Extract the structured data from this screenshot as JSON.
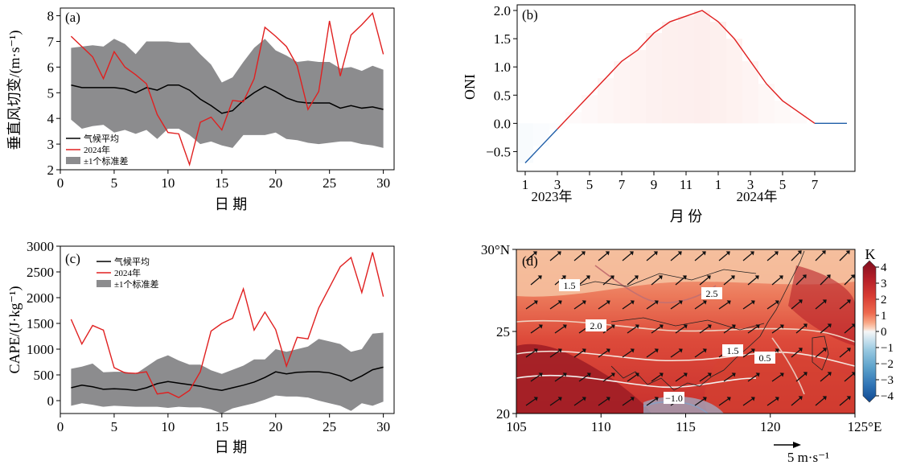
{
  "chart_data": [
    {
      "type": "line",
      "panel_label": "(a)",
      "xlabel": "日 期",
      "ylabel": "垂直风切变/(m·s⁻¹)",
      "xlim": [
        0,
        31
      ],
      "ylim": [
        2,
        8.3
      ],
      "xticks": [
        0,
        5,
        10,
        15,
        20,
        25,
        30
      ],
      "yticks": [
        2,
        3,
        4,
        5,
        6,
        7,
        8
      ],
      "legend": "lower-left",
      "x": [
        1,
        2,
        3,
        4,
        5,
        6,
        7,
        8,
        9,
        10,
        11,
        12,
        13,
        14,
        15,
        16,
        17,
        18,
        19,
        20,
        21,
        22,
        23,
        24,
        25,
        26,
        27,
        28,
        29,
        30
      ],
      "series": [
        {
          "name": "气候平均",
          "color": "#000000",
          "values": [
            5.3,
            5.2,
            5.2,
            5.2,
            5.2,
            5.15,
            5.0,
            5.2,
            5.1,
            5.3,
            5.3,
            5.1,
            4.75,
            4.5,
            4.2,
            4.3,
            4.7,
            5.0,
            5.25,
            5.05,
            4.8,
            4.65,
            4.6,
            4.6,
            4.6,
            4.4,
            4.5,
            4.4,
            4.45,
            4.35
          ]
        },
        {
          "name": "2024年",
          "color": "#e02020",
          "values": [
            7.2,
            6.8,
            6.4,
            5.55,
            6.6,
            6.0,
            5.7,
            5.35,
            4.15,
            3.45,
            3.4,
            2.2,
            3.85,
            4.05,
            3.55,
            4.7,
            4.65,
            5.55,
            7.55,
            7.2,
            6.8,
            6.05,
            4.35,
            5.05,
            7.8,
            5.65,
            7.25,
            7.65,
            8.1,
            6.5
          ]
        },
        {
          "name": "±1个标准差",
          "color": "#8c8c8e",
          "upper": [
            6.75,
            6.8,
            6.85,
            6.8,
            7.1,
            6.9,
            6.5,
            7.0,
            7.0,
            7.0,
            6.95,
            6.95,
            6.5,
            6.1,
            5.4,
            5.6,
            6.2,
            6.75,
            7.1,
            6.65,
            6.45,
            6.2,
            6.25,
            6.2,
            6.2,
            5.95,
            6.0,
            5.85,
            6.05,
            5.9
          ],
          "lower": [
            3.95,
            3.6,
            3.7,
            3.75,
            3.45,
            3.55,
            3.4,
            3.55,
            3.2,
            3.6,
            3.6,
            3.35,
            3.0,
            3.1,
            2.95,
            2.85,
            3.35,
            3.35,
            3.35,
            3.45,
            3.2,
            3.15,
            3.05,
            3.0,
            3.05,
            3.1,
            3.1,
            3.0,
            2.95,
            2.85
          ]
        }
      ]
    },
    {
      "type": "line",
      "panel_label": "(b)",
      "xlabel": "月 份",
      "ylabel": "ONI",
      "xlim": [
        0.5,
        21.5
      ],
      "ylim": [
        -0.85,
        2.1
      ],
      "xtick_labels": [
        "1",
        "3",
        "5",
        "7",
        "9",
        "11",
        "1",
        "3",
        "5",
        "7"
      ],
      "year_labels": [
        "2023年",
        "2024年"
      ],
      "yticks": [
        -0.5,
        0.0,
        0.5,
        1.0,
        1.5,
        2.0
      ],
      "ytick_labels": [
        "−0.5",
        "0.0",
        "0.5",
        "1.0",
        "1.5",
        "2.0"
      ],
      "x": [
        1,
        2,
        3,
        4,
        5,
        6,
        7,
        8,
        9,
        10,
        11,
        12,
        13,
        14,
        15,
        16,
        17,
        18,
        19,
        20,
        21
      ],
      "values": [
        -0.7,
        -0.4,
        -0.1,
        0.2,
        0.5,
        0.8,
        1.1,
        1.3,
        1.6,
        1.8,
        1.9,
        2.0,
        1.8,
        1.5,
        1.1,
        0.7,
        0.4,
        0.2,
        0.0,
        0.0,
        0.0
      ],
      "colors": {
        "positive": "#e02020",
        "negative": "#1f5ea8",
        "fill_pos": "#f9c9c4",
        "fill_neg": "#cfe3f3"
      }
    },
    {
      "type": "line",
      "panel_label": "(c)",
      "xlabel": "日 期",
      "ylabel": "CAPE/(J·kg⁻¹)",
      "xlim": [
        0,
        31
      ],
      "ylim": [
        -250,
        3000
      ],
      "xticks": [
        0,
        5,
        10,
        15,
        20,
        25,
        30
      ],
      "yticks": [
        0,
        500,
        1000,
        1500,
        2000,
        2500,
        3000
      ],
      "legend": "top-left",
      "x": [
        1,
        2,
        3,
        4,
        5,
        6,
        7,
        8,
        9,
        10,
        11,
        12,
        13,
        14,
        15,
        16,
        17,
        18,
        19,
        20,
        21,
        22,
        23,
        24,
        25,
        26,
        27,
        28,
        29,
        30
      ],
      "series": [
        {
          "name": "气候平均",
          "color": "#000000",
          "values": [
            250,
            300,
            270,
            220,
            230,
            220,
            200,
            250,
            330,
            370,
            340,
            310,
            280,
            230,
            200,
            250,
            300,
            360,
            450,
            560,
            520,
            550,
            560,
            560,
            540,
            480,
            380,
            480,
            600,
            650
          ]
        },
        {
          "name": "2024年",
          "color": "#e02020",
          "values": [
            1580,
            1100,
            1460,
            1370,
            640,
            540,
            530,
            560,
            130,
            160,
            60,
            200,
            560,
            1350,
            1500,
            1600,
            2170,
            1370,
            1720,
            1380,
            670,
            1230,
            1200,
            1800,
            2200,
            2600,
            2780,
            2100,
            2880,
            2020
          ]
        },
        {
          "name": "±1个标准差",
          "color": "#8c8c8e",
          "upper": [
            620,
            660,
            720,
            550,
            560,
            560,
            520,
            660,
            800,
            880,
            780,
            700,
            700,
            590,
            520,
            600,
            680,
            800,
            800,
            1000,
            950,
            1000,
            1050,
            1200,
            1150,
            1100,
            950,
            1000,
            1300,
            1320
          ],
          "lower": [
            -100,
            -50,
            -80,
            -120,
            -100,
            -110,
            -120,
            -120,
            -120,
            -140,
            -120,
            -130,
            -130,
            -170,
            -250,
            -150,
            -100,
            -50,
            20,
            100,
            80,
            80,
            60,
            0,
            -50,
            -100,
            -200,
            -50,
            -100,
            -20
          ]
        }
      ]
    },
    {
      "type": "heatmap",
      "panel_label": "(d)",
      "region": {
        "lon": [
          105,
          125
        ],
        "lat": [
          20,
          30
        ]
      },
      "xtick_labels": [
        "105",
        "110",
        "115",
        "120",
        "125°E"
      ],
      "ytick_labels": [
        "20",
        "25",
        "30°N"
      ],
      "colorbar": {
        "unit": "K",
        "ticks": [
          "4",
          "3",
          "2",
          "1",
          "0",
          "−1",
          "−2",
          "−3",
          "−4"
        ],
        "colors": [
          "#800f1f",
          "#b21d27",
          "#d73b32",
          "#ee6a4e",
          "#f9a987",
          "#fbd7c4",
          "#f6f6f6",
          "#d2e6f0",
          "#99c9e1",
          "#5ea3cc",
          "#2f73b5",
          "#104891"
        ]
      },
      "contour_labels": [
        "1.5",
        "2.5",
        "2.0",
        "1.5",
        "0.5",
        "−1.0"
      ],
      "vector_reference": "5 m·s⁻¹"
    }
  ]
}
